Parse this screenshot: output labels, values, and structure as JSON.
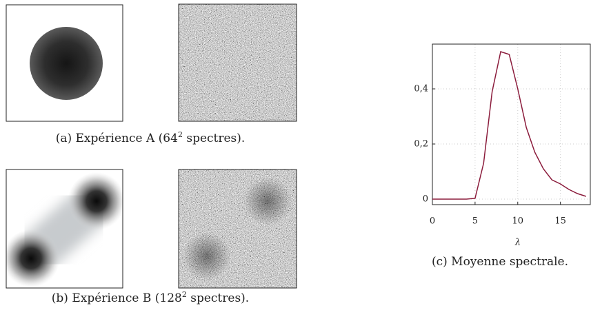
{
  "captions": {
    "a": {
      "prefix": "(a) Expérience A (64",
      "sup": "2",
      "suffix": " spectres)."
    },
    "b": {
      "prefix": "(b) Expérience B (128",
      "sup": "2",
      "suffix": " spectres)."
    }
  },
  "chart_data": {
    "type": "line",
    "caption": "(c) Moyenne spectrale.",
    "x_label": "λ",
    "x": [
      0,
      1,
      2,
      3,
      4,
      5,
      6,
      7,
      8,
      9,
      10,
      11,
      12,
      13,
      14,
      15,
      16,
      17,
      18
    ],
    "series": [
      {
        "color": "#8b1c3c",
        "values": [
          0,
          0,
          0,
          0,
          0,
          0.003,
          0.13,
          0.39,
          0.535,
          0.525,
          0.4,
          0.26,
          0.17,
          0.11,
          0.07,
          0.055,
          0.035,
          0.02,
          0.01
        ]
      }
    ],
    "xlim": [
      0,
      18.5
    ],
    "ylim": [
      -0.02,
      0.5625
    ],
    "xticks": [
      0,
      5,
      10,
      15
    ],
    "yticks": [
      0,
      {
        "value": 0.2,
        "label": "0,2"
      },
      {
        "value": 0.4,
        "label": "0,4"
      }
    ],
    "grid": true
  }
}
